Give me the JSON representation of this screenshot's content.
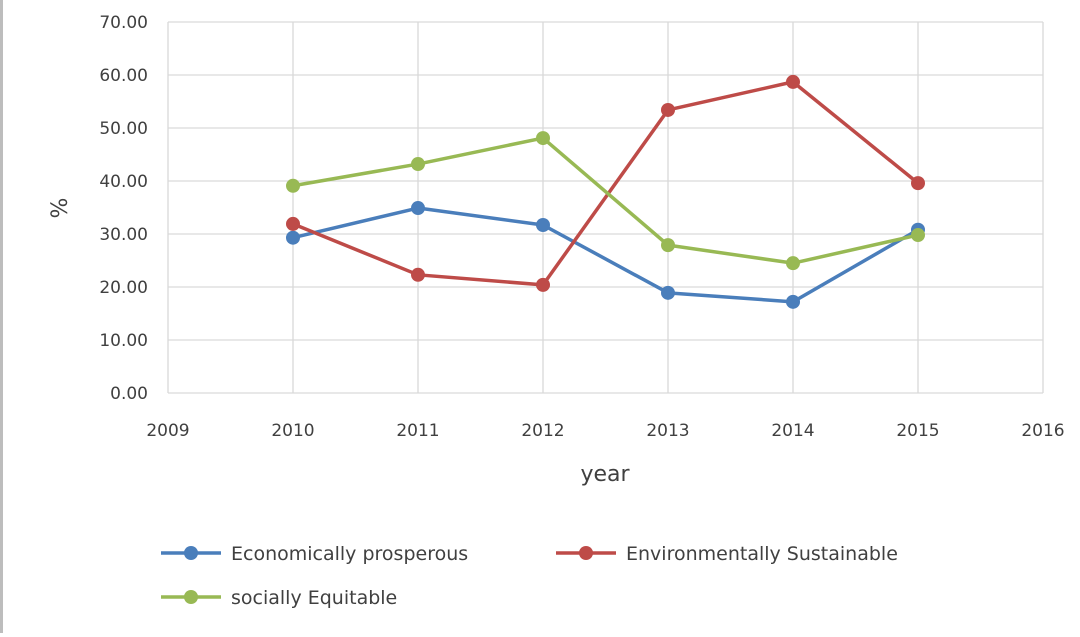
{
  "chart_data": {
    "type": "line",
    "title": "",
    "xlabel": "year",
    "ylabel": "%",
    "xlim": [
      2009,
      2016
    ],
    "ylim": [
      0,
      70
    ],
    "x_ticks": [
      "2009",
      "2010",
      "2011",
      "2012",
      "2013",
      "2014",
      "2015",
      "2016"
    ],
    "y_ticks": [
      "0.00",
      "10.00",
      "20.00",
      "30.00",
      "40.00",
      "50.00",
      "60.00",
      "70.00"
    ],
    "grid": true,
    "legend_position": "bottom",
    "x": [
      2010,
      2011,
      2012,
      2013,
      2014,
      2015
    ],
    "series": [
      {
        "name": "Economically prosperous",
        "color": "#4a7ebb",
        "values": [
          29.3,
          34.9,
          31.7,
          18.9,
          17.2,
          30.8
        ]
      },
      {
        "name": "Environmentally Sustainable",
        "color": "#be4b48",
        "values": [
          31.9,
          22.3,
          20.4,
          53.4,
          58.7,
          39.6
        ]
      },
      {
        "name": "socially Equitable",
        "color": "#98b954",
        "values": [
          39.1,
          43.2,
          48.1,
          27.9,
          24.5,
          29.8
        ]
      }
    ]
  }
}
